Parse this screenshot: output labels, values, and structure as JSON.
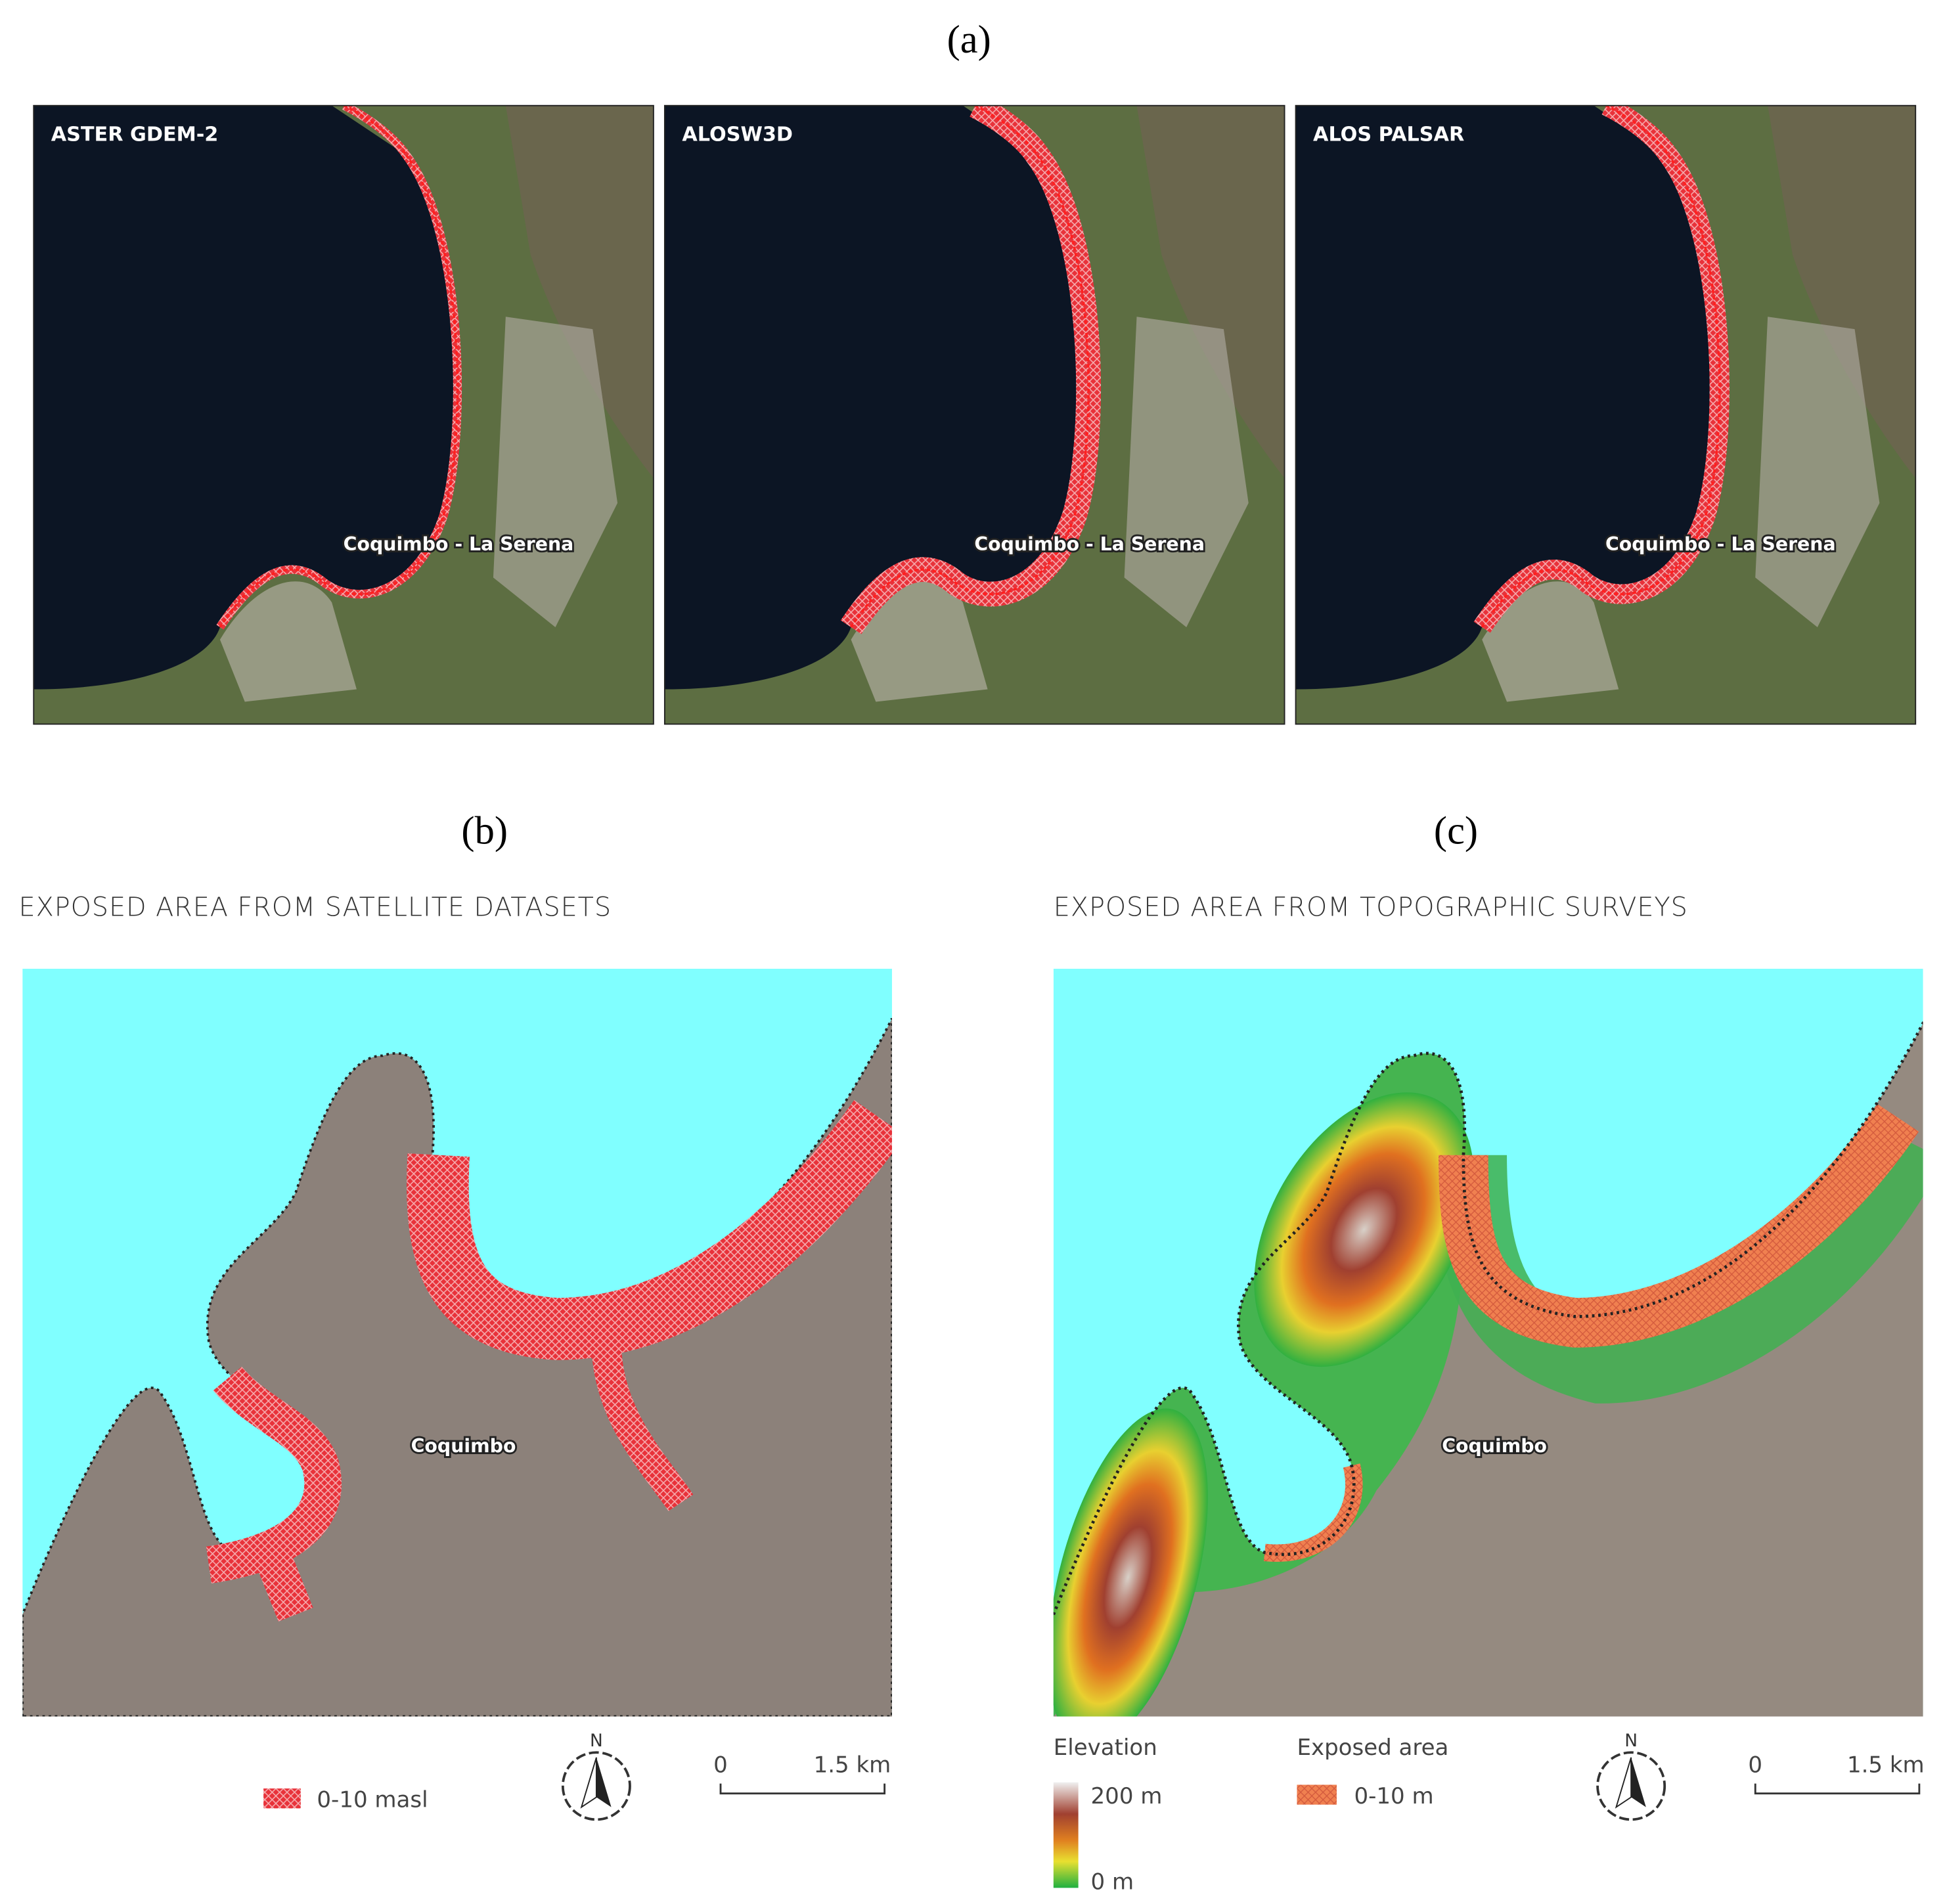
{
  "panel_a": {
    "label": "(a)",
    "maps": [
      {
        "title": "ASTER GDEM-2",
        "place": "Coquimbo - La Serena"
      },
      {
        "title": "ALOSW3D",
        "place": "Coquimbo - La Serena"
      },
      {
        "title": "ALOS PALSAR",
        "place": "Coquimbo - La Serena"
      }
    ]
  },
  "panel_b": {
    "label": "(b)",
    "title": "EXPOSED AREA FROM SATELLITE DATASETS",
    "place": "Coquimbo",
    "legend": "0-10 masl",
    "north": "N",
    "scale": [
      "0",
      "1.5 km"
    ]
  },
  "panel_c": {
    "label": "(c)",
    "title": "EXPOSED AREA FROM TOPOGRAPHIC SURVEYS",
    "place": "Coquimbo",
    "elevation_title": "Elevation",
    "elevation_max": "200 m",
    "elevation_min": "0 m",
    "exposed_title": "Exposed area",
    "legend": "0-10 m",
    "north": "N",
    "scale": [
      "0",
      "1.5 km"
    ]
  }
}
